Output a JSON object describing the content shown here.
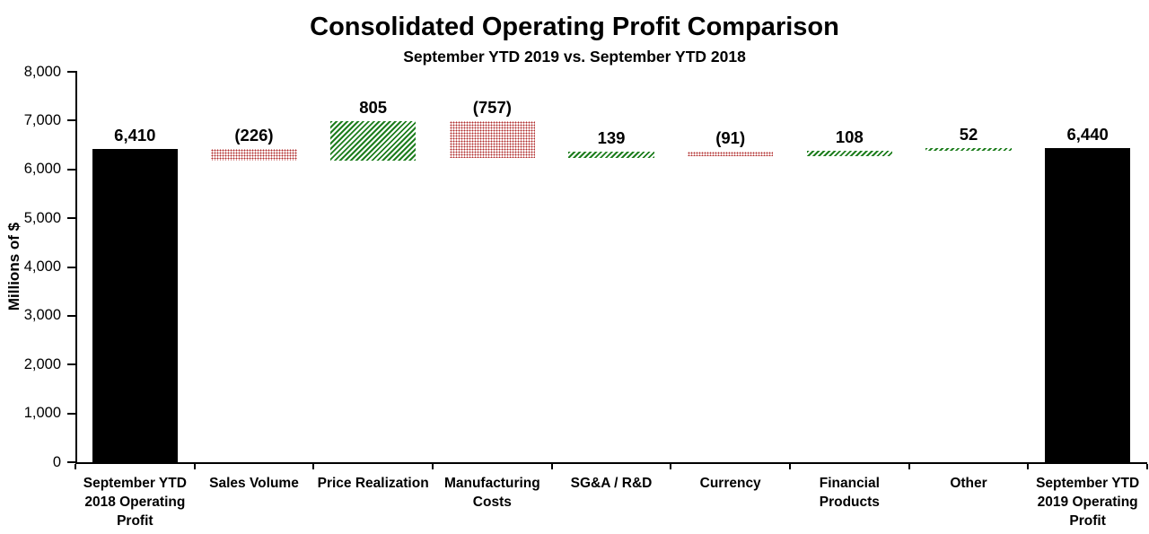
{
  "chart_data": {
    "type": "bar",
    "subtype": "waterfall",
    "title": "Consolidated Operating Profit Comparison",
    "subtitle": "September YTD 2019 vs. September YTD 2018",
    "xlabel": "",
    "ylabel": "Millions of $",
    "ylim": [
      0,
      8000
    ],
    "ytick_step": 1000,
    "ytick_labels": [
      "0",
      "1,000",
      "2,000",
      "3,000",
      "4,000",
      "5,000",
      "6,000",
      "7,000",
      "8,000"
    ],
    "grid": "off",
    "legend": "none",
    "categories": [
      "September YTD 2018 Operating Profit",
      "Sales Volume",
      "Price Realization",
      "Manufacturing Costs",
      "SG&A / R&D",
      "Currency",
      "Financial Products",
      "Other",
      "September YTD 2019 Operating Profit"
    ],
    "bars": [
      {
        "label_lines": [
          "September YTD",
          "2018 Operating",
          "Profit"
        ],
        "value": 6410,
        "display": "6,410",
        "kind": "total"
      },
      {
        "label_lines": [
          "Sales Volume"
        ],
        "value": -226,
        "display": "(226)",
        "kind": "decrease"
      },
      {
        "label_lines": [
          "Price Realization"
        ],
        "value": 805,
        "display": "805",
        "kind": "increase"
      },
      {
        "label_lines": [
          "Manufacturing",
          "Costs"
        ],
        "value": -757,
        "display": "(757)",
        "kind": "decrease"
      },
      {
        "label_lines": [
          "SG&A / R&D"
        ],
        "value": 139,
        "display": "139",
        "kind": "increase"
      },
      {
        "label_lines": [
          "Currency"
        ],
        "value": -91,
        "display": "(91)",
        "kind": "decrease"
      },
      {
        "label_lines": [
          "Financial",
          "Products"
        ],
        "value": 108,
        "display": "108",
        "kind": "increase"
      },
      {
        "label_lines": [
          "Other"
        ],
        "value": 52,
        "display": "52",
        "kind": "increase"
      },
      {
        "label_lines": [
          "September YTD",
          "2019 Operating",
          "Profit"
        ],
        "value": 6440,
        "display": "6,440",
        "kind": "total"
      }
    ],
    "colors": {
      "total": "#000000",
      "increase": "#1e7e1e",
      "decrease": "#b02b2b",
      "axis": "#000000",
      "background": "#ffffff"
    }
  }
}
